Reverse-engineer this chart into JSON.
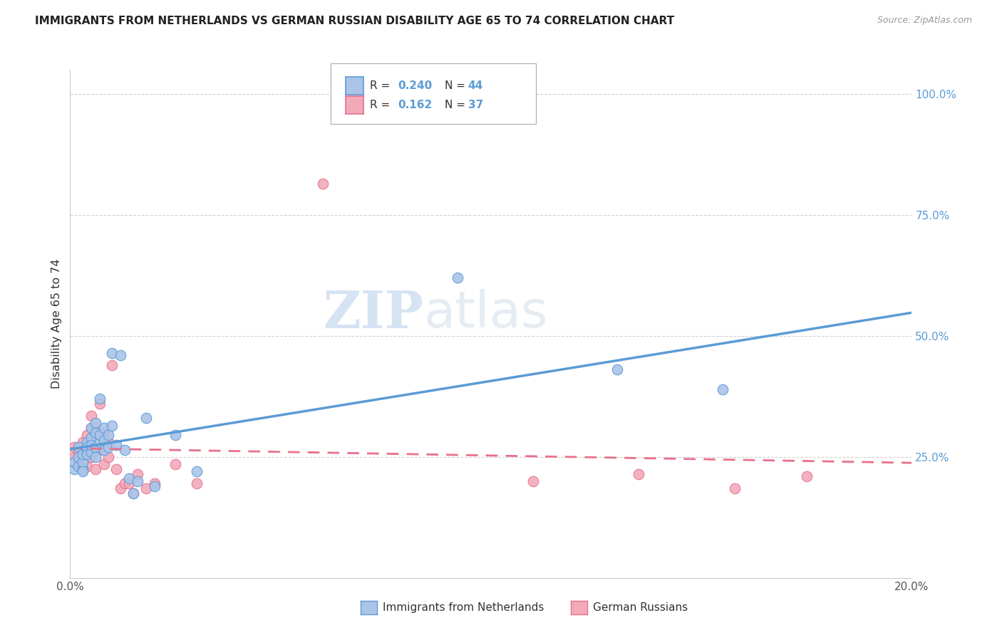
{
  "title": "IMMIGRANTS FROM NETHERLANDS VS GERMAN RUSSIAN DISABILITY AGE 65 TO 74 CORRELATION CHART",
  "source": "Source: ZipAtlas.com",
  "ylabel": "Disability Age 65 to 74",
  "x_min": 0.0,
  "x_max": 0.2,
  "y_min": 0.0,
  "y_max": 1.05,
  "y_tick_labels_right": [
    "100.0%",
    "75.0%",
    "50.0%",
    "25.0%"
  ],
  "y_tick_values_right": [
    1.0,
    0.75,
    0.5,
    0.25
  ],
  "color_blue": "#aac4e8",
  "color_pink": "#f2aabb",
  "line_blue": "#5b9bd5",
  "line_pink": "#e8708a",
  "legend_r1": "0.240",
  "legend_n1": "44",
  "legend_r2": "0.162",
  "legend_n2": "37",
  "watermark_zip": "ZIP",
  "watermark_atlas": "atlas",
  "blue_points_x": [
    0.001,
    0.001,
    0.002,
    0.002,
    0.002,
    0.003,
    0.003,
    0.003,
    0.003,
    0.004,
    0.004,
    0.004,
    0.004,
    0.005,
    0.005,
    0.005,
    0.005,
    0.006,
    0.006,
    0.006,
    0.006,
    0.007,
    0.007,
    0.007,
    0.008,
    0.008,
    0.008,
    0.009,
    0.009,
    0.01,
    0.01,
    0.011,
    0.012,
    0.013,
    0.014,
    0.015,
    0.016,
    0.018,
    0.02,
    0.025,
    0.03,
    0.092,
    0.13,
    0.155
  ],
  "blue_points_y": [
    0.225,
    0.24,
    0.23,
    0.25,
    0.27,
    0.225,
    0.24,
    0.255,
    0.22,
    0.265,
    0.28,
    0.27,
    0.255,
    0.29,
    0.31,
    0.26,
    0.275,
    0.32,
    0.3,
    0.27,
    0.25,
    0.37,
    0.28,
    0.295,
    0.285,
    0.31,
    0.265,
    0.295,
    0.27,
    0.465,
    0.315,
    0.275,
    0.46,
    0.265,
    0.205,
    0.175,
    0.2,
    0.33,
    0.19,
    0.295,
    0.22,
    0.62,
    0.43,
    0.39
  ],
  "pink_points_x": [
    0.001,
    0.001,
    0.002,
    0.002,
    0.003,
    0.003,
    0.003,
    0.004,
    0.004,
    0.004,
    0.005,
    0.005,
    0.005,
    0.006,
    0.006,
    0.007,
    0.007,
    0.008,
    0.008,
    0.009,
    0.009,
    0.01,
    0.011,
    0.012,
    0.013,
    0.014,
    0.015,
    0.016,
    0.018,
    0.02,
    0.025,
    0.03,
    0.06,
    0.11,
    0.135,
    0.158,
    0.175
  ],
  "pink_points_y": [
    0.25,
    0.27,
    0.26,
    0.23,
    0.28,
    0.26,
    0.245,
    0.295,
    0.27,
    0.23,
    0.31,
    0.25,
    0.335,
    0.31,
    0.225,
    0.36,
    0.265,
    0.235,
    0.3,
    0.25,
    0.28,
    0.44,
    0.225,
    0.185,
    0.195,
    0.195,
    0.175,
    0.215,
    0.185,
    0.195,
    0.235,
    0.195,
    0.815,
    0.2,
    0.215,
    0.185,
    0.21
  ]
}
